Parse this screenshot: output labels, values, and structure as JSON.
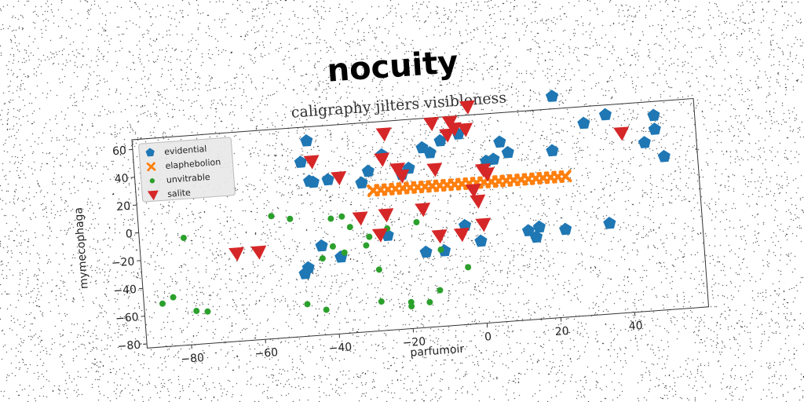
{
  "chart_data": {
    "type": "scatter",
    "title": "nocuity",
    "subtitle": "caligraphy jilters visibleness",
    "xlabel": "parfumoir",
    "ylabel": "mymecophaga",
    "xlim": [
      -92,
      60
    ],
    "ylim": [
      -83,
      67
    ],
    "xticks": [
      -80,
      -60,
      -40,
      -20,
      0,
      20,
      40
    ],
    "yticks": [
      -80,
      -60,
      -40,
      -20,
      0,
      20,
      40,
      60
    ],
    "legend_position": "top-left",
    "series": [
      {
        "name": "evidential",
        "color": "#1f77b4",
        "marker": "pentagon",
        "points": [
          [
            22,
            76
          ],
          [
            -45,
            57
          ],
          [
            36,
            60
          ],
          [
            49,
            57
          ],
          [
            30,
            55
          ],
          [
            -47,
            42
          ],
          [
            -25,
            43
          ],
          [
            -12,
            42
          ],
          [
            -14,
            46
          ],
          [
            -9,
            50
          ],
          [
            -4,
            54
          ],
          [
            7,
            46
          ],
          [
            -45,
            28
          ],
          [
            -44,
            27
          ],
          [
            -40,
            28
          ],
          [
            -31,
            24
          ],
          [
            -29,
            32
          ],
          [
            -20,
            28
          ],
          [
            -18,
            32
          ],
          [
            3,
            33
          ],
          [
            5,
            34
          ],
          [
            9,
            38
          ],
          [
            21,
            37
          ],
          [
            46,
            38
          ],
          [
            49,
            47
          ],
          [
            51,
            27
          ],
          [
            -4,
            -12
          ],
          [
            -43,
            -19
          ],
          [
            -47,
            -34
          ],
          [
            -48,
            -38
          ],
          [
            -38,
            -28
          ],
          [
            -25,
            -15
          ],
          [
            -15,
            -29
          ],
          [
            -10,
            -29
          ],
          [
            0,
            -24
          ],
          [
            13,
            -19
          ],
          [
            15,
            -24
          ],
          [
            16,
            -17
          ],
          [
            23,
            -20
          ],
          [
            35,
            -18
          ]
        ]
      },
      {
        "name": "elaphebolion",
        "color": "#ff7f0e",
        "marker": "x",
        "points": [
          [
            -28,
            18
          ],
          [
            -26,
            18
          ],
          [
            -24,
            18
          ],
          [
            -22,
            18
          ],
          [
            -20,
            18
          ],
          [
            -18,
            18
          ],
          [
            -16,
            18
          ],
          [
            -14,
            18
          ],
          [
            -12,
            18
          ],
          [
            -10,
            18
          ],
          [
            -8,
            18
          ],
          [
            -6,
            18
          ],
          [
            -4,
            18
          ],
          [
            -2,
            18
          ],
          [
            0,
            18
          ],
          [
            2,
            18
          ],
          [
            4,
            18
          ],
          [
            6,
            18
          ],
          [
            8,
            18
          ],
          [
            10,
            18
          ],
          [
            12,
            18
          ],
          [
            14,
            18
          ],
          [
            16,
            18
          ],
          [
            18,
            18
          ],
          [
            20,
            18
          ],
          [
            22,
            18
          ],
          [
            24,
            18
          ]
        ]
      },
      {
        "name": "unvitrable",
        "color": "#2ca02c",
        "marker": "circle",
        "points": [
          [
            -56,
            5
          ],
          [
            -51,
            2
          ],
          [
            -37,
            1
          ],
          [
            -40,
            0
          ],
          [
            -80,
            -6
          ],
          [
            -35,
            -7
          ],
          [
            -17,
            -7
          ],
          [
            -30,
            -15
          ],
          [
            -25,
            -10
          ],
          [
            -31,
            -21
          ],
          [
            -40,
            -20
          ],
          [
            -43,
            -28
          ],
          [
            -37,
            -25
          ],
          [
            -11,
            -28
          ],
          [
            -28,
            -39
          ],
          [
            -4,
            -42
          ],
          [
            -12,
            -57
          ],
          [
            -87,
            -52
          ],
          [
            -84,
            -48
          ],
          [
            -78,
            -59
          ],
          [
            -75,
            -60
          ],
          [
            -48,
            -60
          ],
          [
            -43,
            -65
          ],
          [
            -28,
            -62
          ],
          [
            -20,
            -64
          ],
          [
            -20,
            -67
          ],
          [
            -15,
            -65
          ]
        ]
      },
      {
        "name": "salite",
        "color": "#d62728",
        "marker": "triangle-down",
        "points": [
          [
            -1,
            73
          ],
          [
            -11,
            63
          ],
          [
            -6,
            63
          ],
          [
            -5,
            58
          ],
          [
            -24,
            58
          ],
          [
            -7,
            54
          ],
          [
            -2,
            57
          ],
          [
            -44,
            42
          ],
          [
            -25,
            40
          ],
          [
            -37,
            29
          ],
          [
            -21,
            32
          ],
          [
            -20,
            27
          ],
          [
            -11,
            30
          ],
          [
            2,
            27
          ],
          [
            3,
            24
          ],
          [
            40,
            46
          ],
          [
            -1,
            13
          ],
          [
            0,
            5
          ],
          [
            -32,
            -1
          ],
          [
            -25,
            0
          ],
          [
            -15,
            2
          ],
          [
            -27,
            -14
          ],
          [
            -11,
            -18
          ],
          [
            -5,
            -18
          ],
          [
            1,
            -12
          ],
          [
            -66,
            -20
          ],
          [
            -60,
            -20
          ]
        ]
      }
    ]
  }
}
